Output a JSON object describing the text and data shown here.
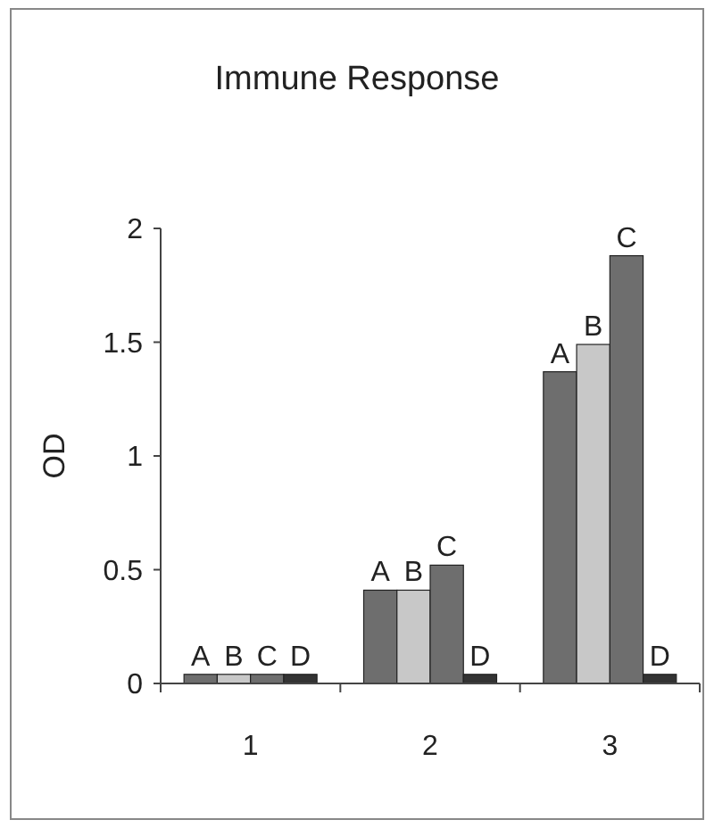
{
  "chart_data": {
    "type": "bar",
    "title": "Immune Response",
    "ylabel": "OD",
    "categories": [
      "1",
      "2",
      "3"
    ],
    "series": [
      {
        "name": "A",
        "color": "#6e6e6e",
        "values": [
          0.04,
          0.41,
          1.37
        ]
      },
      {
        "name": "B",
        "color": "#c8c8c8",
        "values": [
          0.04,
          0.41,
          1.49
        ]
      },
      {
        "name": "C",
        "color": "#6e6e6e",
        "values": [
          0.04,
          0.52,
          1.88
        ]
      },
      {
        "name": "D",
        "color": "#333333",
        "values": [
          0.04,
          0.04,
          0.04
        ]
      }
    ],
    "ylim": [
      0,
      2
    ],
    "yticks": [
      0,
      0.5,
      1,
      1.5,
      2
    ],
    "grid": false
  }
}
